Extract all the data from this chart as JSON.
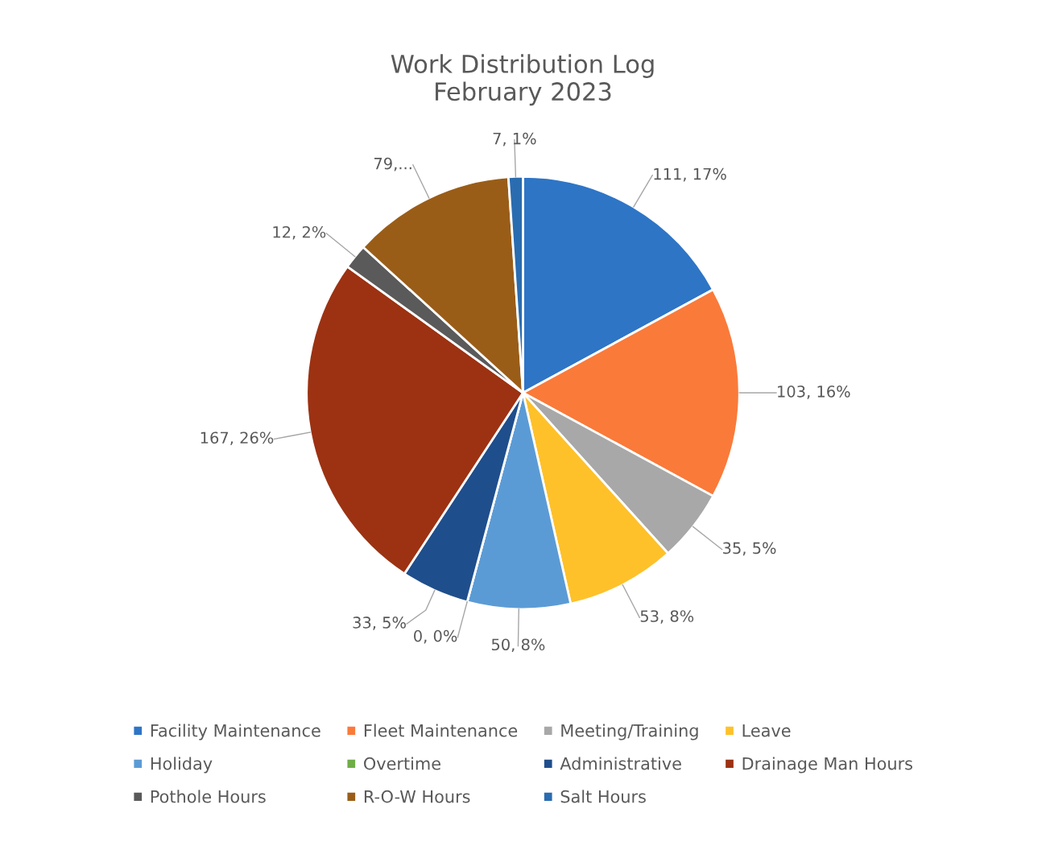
{
  "chart_data": {
    "type": "pie",
    "title": "Work Distribution Log\nFebruary 2023",
    "categories": [
      "Facility Maintenance",
      "Fleet Maintenance",
      "Meeting/Training",
      "Leave",
      "Holiday",
      "Overtime",
      "Administrative",
      "Drainage Man Hours",
      "Pothole Hours",
      "R-O-W Hours",
      "Salt Hours"
    ],
    "values": [
      111,
      103,
      35,
      53,
      50,
      0,
      33,
      167,
      12,
      79,
      7
    ],
    "colors": [
      "#2e75c6",
      "#fa7a3a",
      "#a8a8a8",
      "#fec12a",
      "#5b9bd5",
      "#70ad47",
      "#1f4e8c",
      "#9c3212",
      "#5a5a5a",
      "#9a5d18",
      "#2a6cb0"
    ],
    "value_labels": [
      "111, 17%",
      "103, 16%",
      "35, 5%",
      "53, 8%",
      "50, 8%",
      "0, 0%",
      "33, 5%",
      "167, 26%",
      "12, 2%",
      "79,...",
      "7, 1%"
    ],
    "legend": "bottom"
  }
}
